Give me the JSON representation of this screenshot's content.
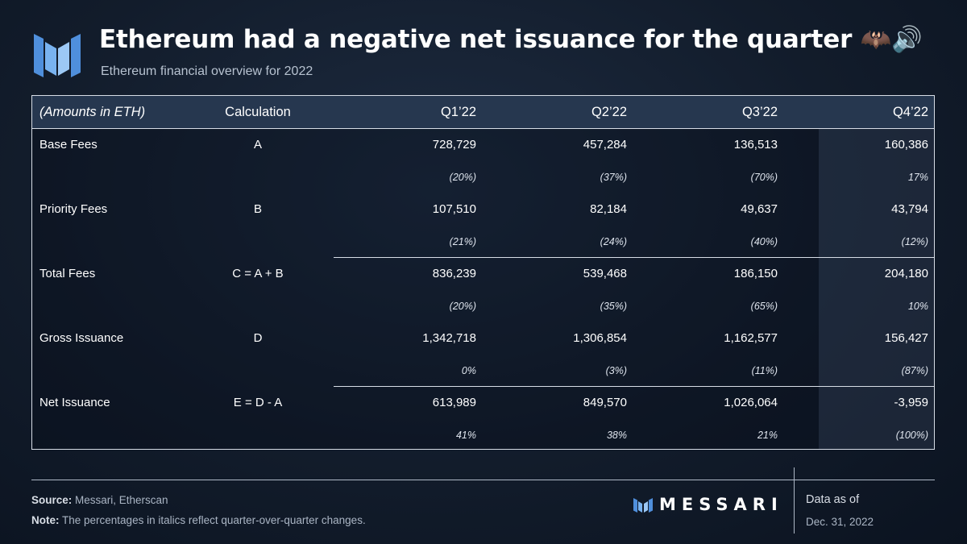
{
  "header": {
    "title": "Ethereum had a negative net issuance for the quarter 🦇🔊",
    "subtitle": "Ethereum financial overview for 2022",
    "logo_icon": "messari-logo-icon"
  },
  "table": {
    "columns": [
      "(Amounts in ETH)",
      "Calculation",
      "Q1’22",
      "Q2’22",
      "Q3’22",
      "Q4’22"
    ],
    "rows": [
      {
        "label": "Base Fees",
        "calc": "A",
        "values": [
          "728,729",
          "457,284",
          "136,513",
          "160,386"
        ],
        "changes": [
          "(20%)",
          "(37%)",
          "(70%)",
          "17%"
        ]
      },
      {
        "label": "Priority Fees",
        "calc": "B",
        "values": [
          "107,510",
          "82,184",
          "49,637",
          "43,794"
        ],
        "changes": [
          "(21%)",
          "(24%)",
          "(40%)",
          "(12%)"
        ]
      },
      {
        "label": "Total Fees",
        "calc": "C = A + B",
        "values": [
          "836,239",
          "539,468",
          "186,150",
          "204,180"
        ],
        "changes": [
          "(20%)",
          "(35%)",
          "(65%)",
          "10%"
        ]
      },
      {
        "label": "Gross Issuance",
        "calc": "D",
        "values": [
          "1,342,718",
          "1,306,854",
          "1,162,577",
          "156,427"
        ],
        "changes": [
          "0%",
          "(3%)",
          "(11%)",
          "(87%)"
        ]
      },
      {
        "label": "Net Issuance",
        "calc": "E = D - A",
        "values": [
          "613,989",
          "849,570",
          "1,026,064",
          "-3,959"
        ],
        "changes": [
          "41%",
          "38%",
          "21%",
          "(100%)"
        ]
      }
    ]
  },
  "footer": {
    "source_label": "Source:",
    "source_text": " Messari, Etherscan",
    "note_label": "Note:",
    "note_text": " The percentages in italics reflect quarter-over-quarter changes.",
    "brand": "MESSARI",
    "data_as_of_label": "Data as of",
    "data_as_of_date": "Dec. 31, 2022"
  }
}
